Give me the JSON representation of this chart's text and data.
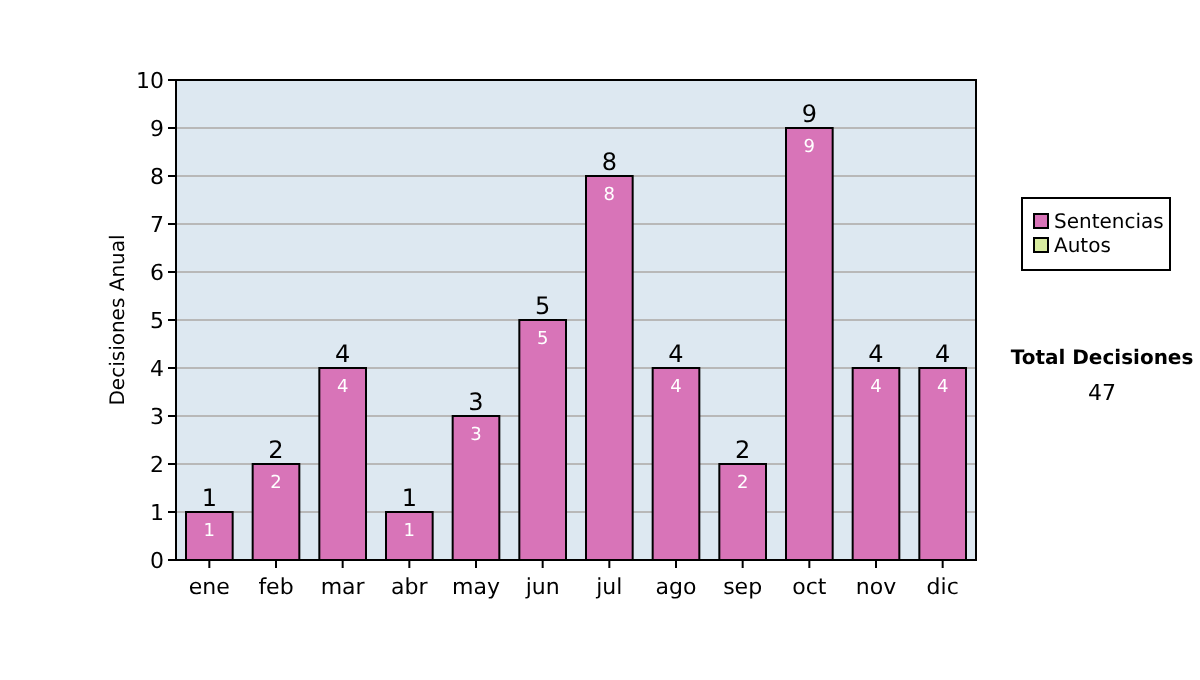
{
  "chart_data": {
    "type": "bar",
    "stacked": true,
    "ylabel": "Decisiones Anual",
    "categories": [
      "ene",
      "feb",
      "mar",
      "abr",
      "may",
      "jun",
      "jul",
      "ago",
      "sep",
      "oct",
      "nov",
      "dic"
    ],
    "series": [
      {
        "name": "Sentencias",
        "color": "#d874b8",
        "values": [
          1,
          2,
          4,
          1,
          3,
          5,
          8,
          4,
          2,
          9,
          4,
          4
        ],
        "value_labels": [
          "1",
          "2",
          "4",
          "1",
          "3",
          "5",
          "8",
          "4",
          "2",
          "9",
          "4",
          "4"
        ]
      },
      {
        "name": "Autos",
        "color": "#d8eca0",
        "values": [
          0,
          0,
          0,
          0,
          0,
          0,
          0,
          0,
          0,
          0,
          0,
          0
        ],
        "value_labels": [
          null,
          null,
          null,
          null,
          null,
          null,
          null,
          null,
          null,
          null,
          null,
          null
        ]
      }
    ],
    "totals": [
      "1",
      "2",
      "4",
      "1",
      "3",
      "5",
      "8",
      "4",
      "2",
      "9",
      "4",
      "4"
    ],
    "ylim": [
      0,
      10
    ],
    "yticks": [
      0,
      1,
      2,
      3,
      4,
      5,
      6,
      7,
      8,
      9,
      10
    ],
    "grid": "y",
    "legend": "right",
    "annotations": [
      "Total Decisiones",
      "47"
    ]
  }
}
